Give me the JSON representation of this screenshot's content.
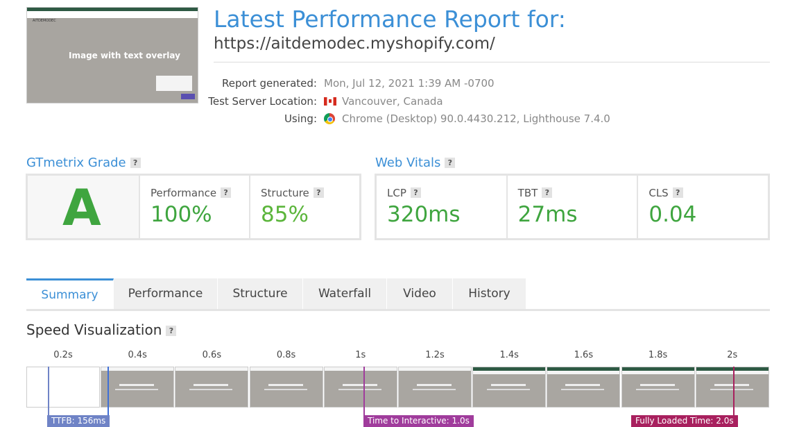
{
  "header": {
    "title": "Latest Performance Report for:",
    "url": "https://aitdemodec.myshopify.com/"
  },
  "thumbnail": {
    "brand": "AITDEMODEC",
    "caption": "Image with text overlay"
  },
  "report_info": [
    {
      "label": "Report generated:",
      "value": "Mon, Jul 12, 2021 1:39 AM -0700"
    },
    {
      "label": "Test Server Location:",
      "value": "Vancouver, Canada"
    },
    {
      "label": "Using:",
      "value": "Chrome (Desktop) 90.0.4430.212, Lighthouse 7.4.0"
    }
  ],
  "help_icon": "?",
  "grade": {
    "title": "GTmetrix Grade",
    "letter": "A",
    "metrics": [
      {
        "label": "Performance",
        "value": "100%"
      },
      {
        "label": "Structure",
        "value": "85%"
      }
    ]
  },
  "web_vitals": {
    "title": "Web Vitals",
    "metrics": [
      {
        "label": "LCP",
        "value": "320ms"
      },
      {
        "label": "TBT",
        "value": "27ms"
      },
      {
        "label": "CLS",
        "value": "0.04"
      }
    ]
  },
  "tabs": [
    "Summary",
    "Performance",
    "Structure",
    "Waterfall",
    "Video",
    "History"
  ],
  "speed_visualization": {
    "title": "Speed Visualization",
    "frames": [
      "0.2s",
      "0.4s",
      "0.6s",
      "0.8s",
      "1s",
      "1.2s",
      "1.4s",
      "1.6s",
      "1.8s",
      "2s"
    ],
    "markers": [
      "TTFB: 156ms",
      "Time to Interactive: 1.0s",
      "Fully Loaded Time: 2.0s"
    ]
  }
}
